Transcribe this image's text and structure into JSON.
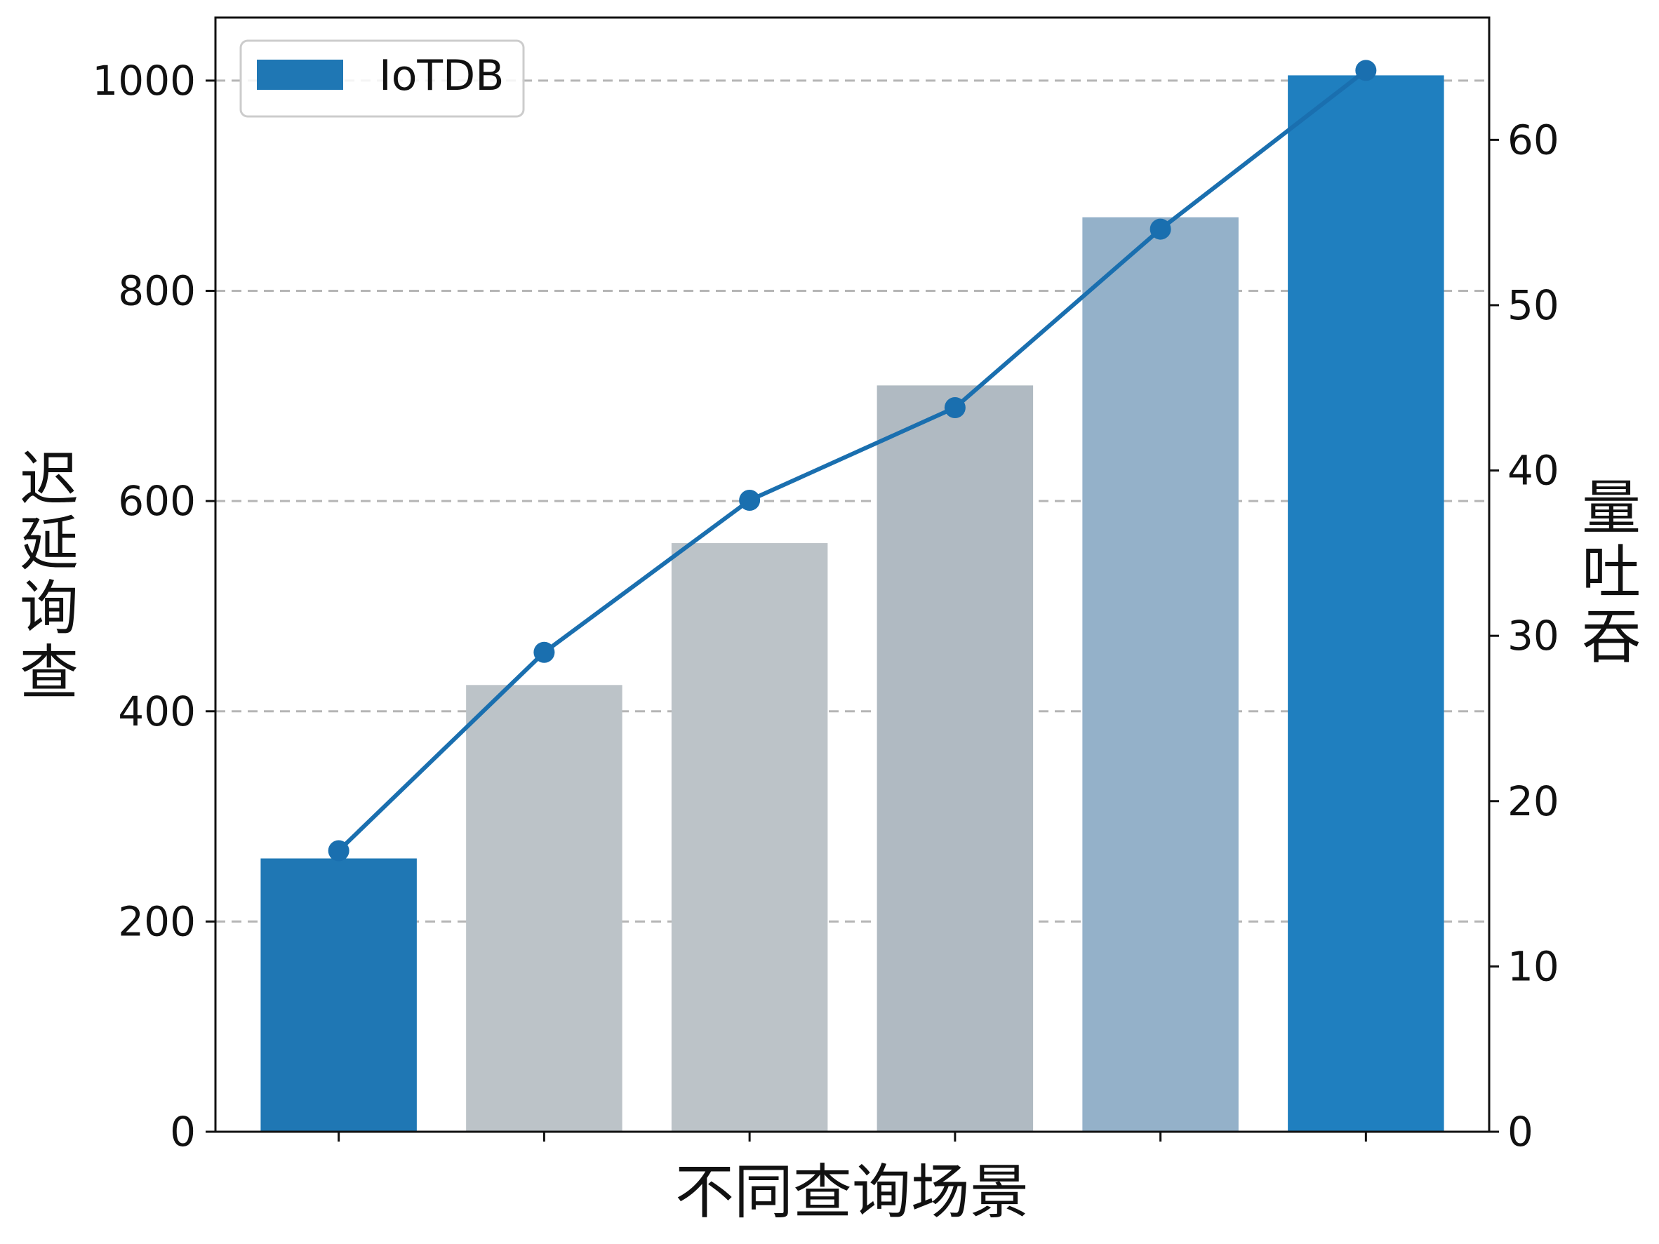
{
  "chart_data": {
    "type": "bar",
    "categories": [
      "",
      "",
      "",
      "",
      "",
      ""
    ],
    "series": [
      {
        "name": "IoTDB",
        "kind": "bar",
        "axis": "left",
        "values": [
          260,
          425,
          560,
          710,
          870,
          1005
        ],
        "colors": [
          "#1f77b4",
          "#bcc3c8",
          "#bcc3c8",
          "#b0bac2",
          "#94b1c9",
          "#1f7fbf"
        ]
      },
      {
        "name": "",
        "kind": "line",
        "axis": "right",
        "values": [
          17,
          29,
          38.2,
          43.8,
          54.6,
          64.2
        ],
        "color": "#1a6faf"
      }
    ],
    "xlabel": "不同查询场景",
    "ylabel": "迟延询查",
    "ylabel_right": "量吐吞",
    "ylim": [
      0,
      1060
    ],
    "ylim_right": [
      0,
      67.4
    ],
    "yticks": [
      0,
      200,
      400,
      600,
      800,
      1000
    ],
    "yticks_right": [
      0,
      10,
      20,
      30,
      40,
      50,
      60
    ],
    "grid": "horizontal-dashed",
    "legend": {
      "position": "top-left",
      "entries": [
        {
          "label": "IoTDB",
          "color": "#1f77b4"
        }
      ]
    }
  }
}
